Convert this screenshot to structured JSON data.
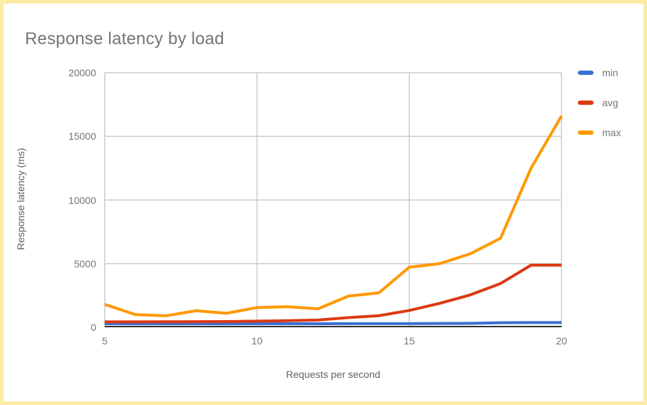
{
  "frame": {
    "border_color": "#FBEBA6",
    "background_color": "#FFFFFF"
  },
  "chart_data": {
    "type": "line",
    "title": "Response latency by load",
    "xlabel": "Requests per second",
    "ylabel": "Response latency (ms)",
    "xlim": [
      5,
      20
    ],
    "ylim": [
      0,
      20000
    ],
    "x_ticks": [
      5,
      10,
      15,
      20
    ],
    "y_ticks": [
      0,
      5000,
      10000,
      15000,
      20000
    ],
    "grid": true,
    "legend_position": "right",
    "x": [
      5,
      6,
      7,
      8,
      9,
      10,
      11,
      12,
      13,
      14,
      15,
      16,
      17,
      18,
      19,
      20
    ],
    "series": [
      {
        "name": "min",
        "color": "#3B6FD3",
        "values": [
          280,
          270,
          270,
          275,
          270,
          280,
          280,
          280,
          285,
          285,
          290,
          300,
          310,
          360,
          370,
          370
        ]
      },
      {
        "name": "avg",
        "color": "#DC3912",
        "values": [
          430,
          430,
          435,
          440,
          450,
          480,
          520,
          570,
          760,
          910,
          1320,
          1880,
          2540,
          3440,
          4880,
          4880
        ]
      },
      {
        "name": "max",
        "color": "#FF9900",
        "values": [
          1800,
          1000,
          900,
          1300,
          1100,
          1550,
          1620,
          1450,
          2450,
          2700,
          4720,
          5000,
          5770,
          7000,
          12500,
          16600
        ]
      }
    ],
    "colors": {
      "grid": "#CCCCCC",
      "axis_baseline": "#333333",
      "title_text": "#757575",
      "tick_text": "#757575",
      "axis_title_text": "#616161"
    }
  }
}
